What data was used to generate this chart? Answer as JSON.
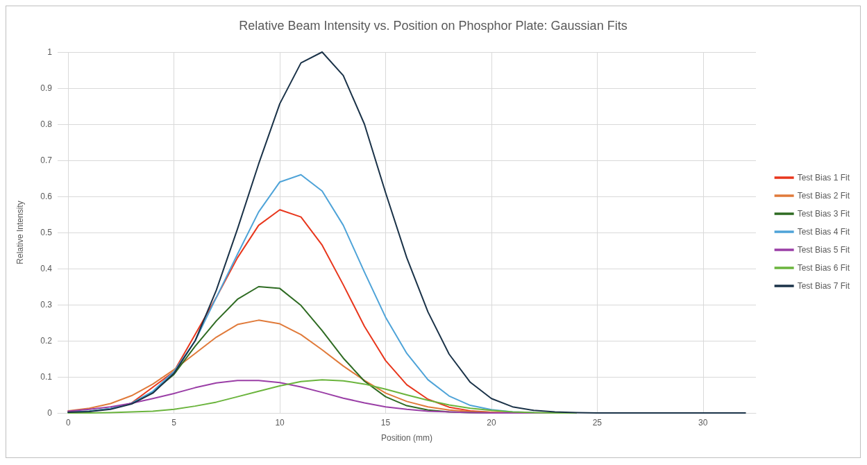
{
  "chart_data": {
    "type": "line",
    "title": "Relative Beam Intensity vs. Position on Phosphor Plate: Gaussian Fits",
    "xlabel": "Position (mm)",
    "ylabel": "Relative Intensity",
    "x": [
      0,
      1,
      2,
      3,
      4,
      5,
      6,
      7,
      8,
      9,
      10,
      11,
      12,
      13,
      14,
      15,
      16,
      17,
      18,
      19,
      20,
      21,
      22,
      23,
      24,
      25,
      26,
      27,
      28,
      29,
      30,
      31,
      32
    ],
    "series": [
      {
        "name": "Test Bias 1 Fit",
        "color": "#e8361c",
        "values": [
          null,
          null,
          null,
          0.028,
          null,
          0.115,
          null,
          0.32,
          0.43,
          0.52,
          0.563,
          0.543,
          0.465,
          0.355,
          0.24,
          0.145,
          0.078,
          0.038,
          0.016,
          0.006,
          0.002,
          null,
          null,
          null,
          null,
          null,
          null,
          null,
          null,
          null,
          null,
          null,
          null
        ]
      },
      {
        "name": "Test Bias 2 Fit",
        "color": "#e07a3a",
        "values": [
          0.006,
          0.013,
          0.026,
          0.048,
          0.08,
          0.12,
          0.165,
          0.21,
          0.245,
          0.257,
          0.247,
          0.217,
          0.175,
          0.13,
          0.09,
          0.055,
          0.032,
          0.017,
          0.008,
          0.004,
          0.002,
          0.001,
          null,
          null,
          null,
          null,
          null,
          null,
          null,
          null,
          null,
          null,
          null
        ]
      },
      {
        "name": "Test Bias 3 Fit",
        "color": "#2e6b22",
        "values": [
          0.002,
          0.005,
          0.012,
          0.027,
          0.058,
          0.107,
          0.185,
          0.255,
          0.315,
          0.35,
          0.345,
          0.298,
          0.228,
          0.152,
          0.088,
          0.045,
          0.02,
          0.008,
          0.003,
          0.001,
          0,
          0,
          0,
          0,
          0,
          null,
          null,
          null,
          null,
          null,
          null,
          null,
          null
        ]
      },
      {
        "name": "Test Bias 4 Fit",
        "color": "#4ea3d8",
        "values": [
          0.002,
          0.005,
          0.012,
          0.027,
          0.06,
          0.115,
          0.2,
          0.32,
          0.44,
          0.557,
          0.64,
          0.66,
          0.615,
          0.52,
          0.39,
          0.265,
          0.165,
          0.092,
          0.047,
          0.021,
          0.009,
          0.003,
          0.001,
          null,
          null,
          null,
          null,
          null,
          null,
          null,
          null,
          null,
          null
        ]
      },
      {
        "name": "Test Bias 5 Fit",
        "color": "#9a3ea6",
        "values": [
          0.005,
          0.01,
          0.017,
          0.027,
          0.04,
          0.054,
          0.07,
          0.083,
          0.09,
          0.09,
          0.084,
          0.072,
          0.057,
          0.041,
          0.028,
          0.017,
          0.01,
          0.005,
          0.003,
          0.001,
          0,
          0,
          0,
          0,
          0,
          null,
          null,
          null,
          null,
          null,
          null,
          null,
          null
        ]
      },
      {
        "name": "Test Bias 6 Fit",
        "color": "#6ab43c",
        "values": [
          0,
          0,
          0.001,
          0.003,
          0.005,
          0.01,
          0.019,
          0.03,
          0.045,
          0.06,
          0.075,
          0.087,
          0.092,
          0.089,
          0.08,
          0.066,
          0.05,
          0.035,
          0.022,
          0.013,
          0.007,
          0.003,
          0.001,
          0,
          0,
          null,
          null,
          null,
          null,
          null,
          null,
          null,
          null
        ]
      },
      {
        "name": "Test Bias 7 Fit",
        "color": "#1a3248",
        "values": [
          0.002,
          0.004,
          0.01,
          0.025,
          0.055,
          0.11,
          0.2,
          0.34,
          0.51,
          0.69,
          0.857,
          0.97,
          1.0,
          0.935,
          0.8,
          0.61,
          0.43,
          0.28,
          0.163,
          0.085,
          0.04,
          0.017,
          0.007,
          0.003,
          0.001,
          0,
          0,
          0,
          0,
          0,
          0,
          0,
          0
        ]
      }
    ],
    "xlim": [
      -0.5,
      32.5
    ],
    "xticks": [
      0,
      5,
      10,
      15,
      20,
      25,
      30
    ],
    "ylim": [
      0,
      1
    ],
    "yticks": [
      0,
      0.1,
      0.2,
      0.3,
      0.4,
      0.5,
      0.6,
      0.7,
      0.8,
      0.9,
      1
    ],
    "grid": true,
    "legend": "right",
    "marker": "none",
    "line_style": "solid"
  }
}
